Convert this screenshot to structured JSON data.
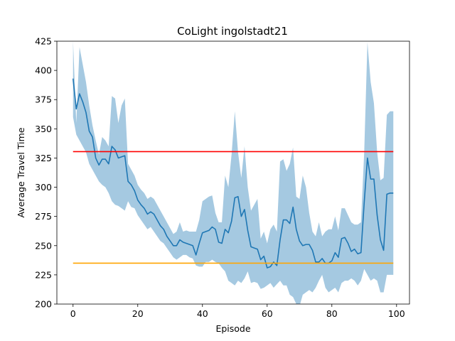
{
  "chart_data": {
    "type": "line",
    "title": "CoLight ingolstadt21",
    "xlabel": "Episode",
    "ylabel": "Average Travel Time",
    "xlim": [
      -5,
      104
    ],
    "ylim": [
      200,
      425
    ],
    "xticks": [
      0,
      20,
      40,
      60,
      80,
      100
    ],
    "yticks": [
      200,
      225,
      250,
      275,
      300,
      325,
      350,
      375,
      400,
      425
    ],
    "grid": false,
    "series": [
      {
        "kind": "mean_line",
        "color": "#1f77b4",
        "x": [
          0,
          1,
          2,
          3,
          4,
          5,
          6,
          7,
          8,
          9,
          10,
          11,
          12,
          13,
          14,
          15,
          16,
          17,
          18,
          19,
          20,
          21,
          22,
          23,
          24,
          25,
          26,
          27,
          28,
          29,
          30,
          31,
          32,
          33,
          34,
          35,
          36,
          37,
          38,
          39,
          40,
          41,
          42,
          43,
          44,
          45,
          46,
          47,
          48,
          49,
          50,
          51,
          52,
          53,
          54,
          55,
          56,
          57,
          58,
          59,
          60,
          61,
          62,
          63,
          64,
          65,
          66,
          67,
          68,
          69,
          70,
          71,
          72,
          73,
          74,
          75,
          76,
          77,
          78,
          79,
          80,
          81,
          82,
          83,
          84,
          85,
          86,
          87,
          88,
          89,
          90,
          91,
          92,
          93,
          94,
          95,
          96,
          97,
          98,
          99
        ],
        "values": [
          393,
          367,
          380,
          373,
          364,
          348,
          343,
          325,
          319,
          324,
          324,
          320,
          335,
          332,
          325,
          326,
          327,
          305,
          302,
          297,
          289,
          285,
          282,
          277,
          279,
          277,
          272,
          267,
          264,
          258,
          254,
          250,
          250,
          255,
          253,
          252,
          251,
          250,
          242,
          252,
          261,
          262,
          263,
          266,
          264,
          253,
          252,
          264,
          261,
          271,
          291,
          292,
          275,
          281,
          263,
          249,
          248,
          247,
          238,
          241,
          231,
          232,
          236,
          233,
          255,
          272,
          272,
          269,
          283,
          264,
          254,
          250,
          251,
          251,
          246,
          236,
          236,
          239,
          235,
          235,
          237,
          244,
          240,
          256,
          257,
          252,
          245,
          247,
          243,
          244,
          287,
          325,
          307,
          307,
          276,
          255,
          246,
          294,
          295,
          295
        ]
      },
      {
        "kind": "band",
        "color": "#1f77b4",
        "opacity": 0.4,
        "x": [
          0,
          1,
          2,
          3,
          4,
          5,
          6,
          7,
          8,
          9,
          10,
          11,
          12,
          13,
          14,
          15,
          16,
          17,
          18,
          19,
          20,
          21,
          22,
          23,
          24,
          25,
          26,
          27,
          28,
          29,
          30,
          31,
          32,
          33,
          34,
          35,
          36,
          37,
          38,
          39,
          40,
          41,
          42,
          43,
          44,
          45,
          46,
          47,
          48,
          49,
          50,
          51,
          52,
          53,
          54,
          55,
          56,
          57,
          58,
          59,
          60,
          61,
          62,
          63,
          64,
          65,
          66,
          67,
          68,
          69,
          70,
          71,
          72,
          73,
          74,
          75,
          76,
          77,
          78,
          79,
          80,
          81,
          82,
          83,
          84,
          85,
          86,
          87,
          88,
          89,
          90,
          91,
          92,
          93,
          94,
          95,
          96,
          97,
          98,
          99
        ],
        "upper": [
          425,
          355,
          420,
          405,
          390,
          370,
          353,
          340,
          328,
          343,
          340,
          335,
          378,
          376,
          355,
          370,
          376,
          320,
          315,
          310,
          302,
          298,
          295,
          290,
          292,
          290,
          285,
          280,
          275,
          270,
          265,
          260,
          262,
          270,
          262,
          263,
          262,
          262,
          262,
          272,
          288,
          290,
          292,
          293,
          278,
          270,
          270,
          310,
          300,
          328,
          365,
          330,
          308,
          335,
          300,
          280,
          285,
          290,
          256,
          262,
          252,
          264,
          268,
          262,
          322,
          324,
          314,
          320,
          334,
          292,
          290,
          310,
          300,
          278,
          262,
          258,
          270,
          258,
          262,
          264,
          264,
          275,
          263,
          282,
          282,
          276,
          270,
          268,
          268,
          270,
          330,
          424,
          390,
          372,
          330,
          306,
          308,
          362,
          365,
          365
        ],
        "lower": [
          360,
          345,
          340,
          335,
          330,
          320,
          315,
          310,
          305,
          302,
          300,
          295,
          288,
          285,
          284,
          282,
          280,
          288,
          283,
          282,
          276,
          272,
          268,
          264,
          266,
          262,
          258,
          254,
          252,
          248,
          244,
          240,
          238,
          240,
          242,
          242,
          240,
          239,
          233,
          232,
          232,
          236,
          236,
          238,
          236,
          235,
          231,
          228,
          220,
          218,
          216,
          220,
          218,
          222,
          228,
          218,
          219,
          218,
          213,
          214,
          216,
          218,
          214,
          217,
          220,
          216,
          216,
          208,
          206,
          200,
          198,
          208,
          210,
          212,
          210,
          214,
          220,
          225,
          214,
          210,
          212,
          214,
          210,
          218,
          220,
          220,
          222,
          220,
          216,
          220,
          230,
          225,
          220,
          222,
          220,
          210,
          210,
          225,
          225,
          225
        ]
      },
      {
        "kind": "hline",
        "color": "#ff0000",
        "y": 330.5,
        "x_range": [
          0,
          99
        ]
      },
      {
        "kind": "hline",
        "color": "#ffa500",
        "y": 235,
        "x_range": [
          0,
          99
        ]
      }
    ]
  }
}
